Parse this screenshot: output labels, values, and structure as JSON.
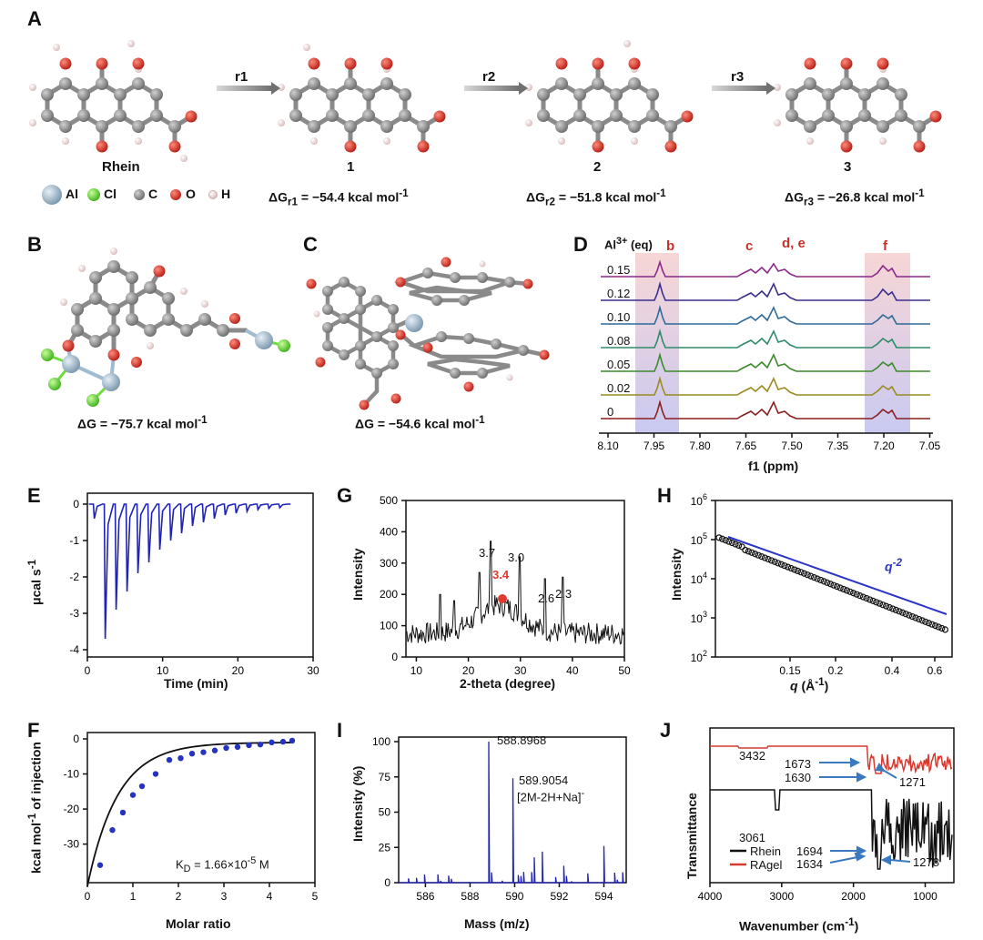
{
  "panels": {
    "A": "A",
    "B": "B",
    "C": "C",
    "D": "D",
    "E": "E",
    "F": "F",
    "G": "G",
    "H": "H",
    "I": "I",
    "J": "J"
  },
  "panelA": {
    "arrows": [
      "r1",
      "r2",
      "r3"
    ],
    "molecules": [
      "Rhein",
      "1",
      "2",
      "3"
    ],
    "legend": [
      {
        "symbol": "Al",
        "color": "#9fbcd1"
      },
      {
        "symbol": "Cl",
        "color": "#6fdc3a"
      },
      {
        "symbol": "C",
        "color": "#8a8a8a"
      },
      {
        "symbol": "O",
        "color": "#d42a20"
      },
      {
        "symbol": "H",
        "color": "#f0d8d8"
      }
    ],
    "energies": [
      {
        "pre": "ΔG",
        "sub": "r1",
        "post": " = −54.4 kcal mol",
        "sup": "-1"
      },
      {
        "pre": "ΔG",
        "sub": "r2",
        "post": " = −51.8 kcal mol",
        "sup": "-1"
      },
      {
        "pre": "ΔG",
        "sub": "r3",
        "post": " = −26.8 kcal mol",
        "sup": "-1"
      }
    ]
  },
  "panelB": {
    "energy_pre": "ΔG = −75.7 kcal mol",
    "energy_sup": "-1"
  },
  "panelC": {
    "energy_pre": "ΔG = −54.6 kcal mol",
    "energy_sup": "-1"
  },
  "panelD": {
    "eq_label_pre": "Al",
    "eq_label_sup": "3+",
    "eq_label_post": " (eq)",
    "peak_labels": [
      "b",
      "c",
      "d, e",
      "f"
    ],
    "xlabel": "f1 (ppm)",
    "xticks": [
      "8.10",
      "7.95",
      "7.80",
      "7.65",
      "7.50",
      "7.35",
      "7.20",
      "7.05"
    ],
    "traces": [
      {
        "eq": "0.15",
        "color": "#8b2a8b"
      },
      {
        "eq": "0.12",
        "color": "#3a2f8f"
      },
      {
        "eq": "0.10",
        "color": "#2f6a99"
      },
      {
        "eq": "0.08",
        "color": "#2e8b67"
      },
      {
        "eq": "0.05",
        "color": "#3b8a2b"
      },
      {
        "eq": "0.02",
        "color": "#9a8a20"
      },
      {
        "eq": "0",
        "color": "#8a1f1f"
      }
    ]
  },
  "panelE": {
    "xlabel": "Time (min)",
    "ylabel_pre": "μcal s",
    "ylabel_sup": "-1",
    "xticks": [
      "0",
      "10",
      "20",
      "30"
    ],
    "yticks": [
      "0",
      "-1",
      "-2",
      "-3",
      "-4"
    ],
    "color": "#1e22b5"
  },
  "panelF": {
    "xlabel": "Molar ratio",
    "ylabel_pre": "kcal mol",
    "ylabel_sup": "-1",
    "ylabel_post": " of injection",
    "xticks": [
      "0",
      "1",
      "2",
      "3",
      "4",
      "5"
    ],
    "yticks": [
      "0",
      "-10",
      "-20",
      "-30"
    ],
    "annotation_pre": "K",
    "annotation_sub": "D",
    "annotation_mid": " = 1.66×10",
    "annotation_sup": "-5",
    "annotation_post": " M"
  },
  "panelG": {
    "xlabel": "2-theta (degree)",
    "ylabel": "Intensity",
    "xticks": [
      "10",
      "20",
      "30",
      "40",
      "50"
    ],
    "yticks": [
      "0",
      "100",
      "200",
      "300",
      "400",
      "500"
    ],
    "peaks": [
      "3.7",
      "3.0",
      "3.4",
      "2.6",
      "2.3"
    ]
  },
  "panelH": {
    "xlabel_pre": "q",
    "xlabel_post": " (Å",
    "xlabel_sup": "-1",
    "xlabel_end": ")",
    "ylabel": "Intensity",
    "xticks": [
      "0.15",
      "0.2",
      "0.4",
      "0.6"
    ],
    "yticks": [
      {
        "b": "10",
        "e": "2"
      },
      {
        "b": "10",
        "e": "3"
      },
      {
        "b": "10",
        "e": "4"
      },
      {
        "b": "10",
        "e": "5"
      },
      {
        "b": "10",
        "e": "6"
      }
    ],
    "annotation_pre": "q",
    "annotation_sup": "-2"
  },
  "panelI": {
    "xlabel": "Mass (m/z)",
    "ylabel": "Intensity (%)",
    "xticks": [
      "586",
      "588",
      "590",
      "592",
      "594"
    ],
    "yticks": [
      "0",
      "25",
      "50",
      "75",
      "100"
    ],
    "peak1": "588.8968",
    "peak2": "589.9054",
    "peak2_label": "[2M-2H+Na]",
    "peak2_sup": "-"
  },
  "panelJ": {
    "xlabel_pre": "Wavenumber (cm",
    "xlabel_sup": "-1",
    "xlabel_post": ")",
    "ylabel": "Transmittance",
    "xticks": [
      "4000",
      "3000",
      "2000",
      "1000"
    ],
    "legend": [
      {
        "name": "Rhein",
        "color": "#111111"
      },
      {
        "name": "RAgel",
        "color": "#d63a2f"
      }
    ],
    "annotations": [
      "3432",
      "1673",
      "1630",
      "1271",
      "3061",
      "1694",
      "1634",
      "1278"
    ]
  }
}
